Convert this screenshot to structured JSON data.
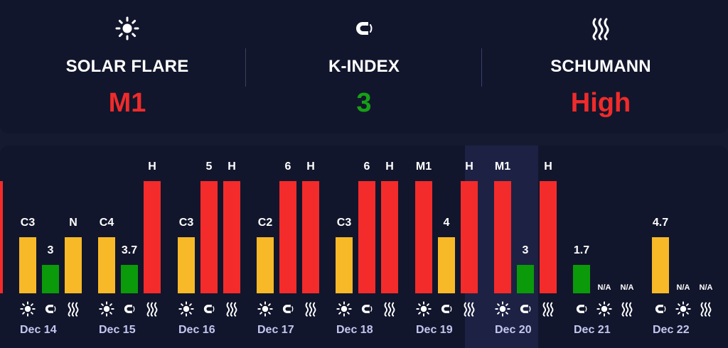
{
  "summary": {
    "solar_flare": {
      "label": "SOLAR FLARE",
      "value": "M1",
      "color": "#f02b2b",
      "icon": "sun-icon"
    },
    "k_index": {
      "label": "K-INDEX",
      "value": "3",
      "color": "#16a016",
      "icon": "magnet-icon"
    },
    "schumann": {
      "label": "SCHUMANN",
      "value": "High",
      "color": "#f02b2b",
      "icon": "wave-icon"
    }
  },
  "colors": {
    "low": "#f7b928",
    "green": "#0a9a0a",
    "high": "#f42b2b",
    "highlight_bg": "#1d2244",
    "date_text": "#c3c7f0"
  },
  "chart_data": {
    "type": "bar",
    "title": "",
    "xlabel": "",
    "ylabel": "",
    "categories": [
      "Dec 14",
      "Dec 15",
      "Dec 16",
      "Dec 17",
      "Dec 18",
      "Dec 19",
      "Dec 20",
      "Dec 21",
      "Dec 22"
    ],
    "selected": "Dec 20",
    "series": [
      {
        "name": "Solar flare",
        "labels": [
          "C3",
          "C4",
          "C3",
          "C2",
          "C3",
          "M1",
          "M1",
          "N/A",
          "N/A"
        ],
        "levels": [
          2,
          2,
          2,
          2,
          2,
          4,
          4,
          null,
          null
        ],
        "colors": [
          "#f7b928",
          "#f7b928",
          "#f7b928",
          "#f7b928",
          "#f7b928",
          "#f42b2b",
          "#f42b2b",
          null,
          null
        ]
      },
      {
        "name": "K-index",
        "labels": [
          "3",
          "3.7",
          "5",
          "6",
          "6",
          "4",
          "3",
          "1.7",
          "4.7"
        ],
        "levels": [
          1,
          1,
          4,
          4,
          4,
          2,
          1,
          1,
          2
        ],
        "colors": [
          "#0a9a0a",
          "#0a9a0a",
          "#f42b2b",
          "#f42b2b",
          "#f42b2b",
          "#f7b928",
          "#0a9a0a",
          "#0a9a0a",
          "#f7b928"
        ]
      },
      {
        "name": "Schumann",
        "labels": [
          "N",
          "H",
          "H",
          "H",
          "H",
          "H",
          "H",
          "N/A",
          "N/A"
        ],
        "levels": [
          2,
          4,
          4,
          4,
          4,
          4,
          4,
          null,
          null
        ],
        "colors": [
          "#f7b928",
          "#f42b2b",
          "#f42b2b",
          "#f42b2b",
          "#f42b2b",
          "#f42b2b",
          "#f42b2b",
          null,
          null
        ]
      }
    ],
    "group_order": [
      [
        "Solar flare",
        "K-index",
        "Schumann"
      ],
      [
        "Solar flare",
        "K-index",
        "Schumann"
      ],
      [
        "Solar flare",
        "K-index",
        "Schumann"
      ],
      [
        "Solar flare",
        "K-index",
        "Schumann"
      ],
      [
        "Solar flare",
        "K-index",
        "Schumann"
      ],
      [
        "Solar flare",
        "K-index",
        "Schumann"
      ],
      [
        "Solar flare",
        "K-index",
        "Schumann"
      ],
      [
        "K-index",
        "Solar flare",
        "Schumann"
      ],
      [
        "K-index",
        "Solar flare",
        "Schumann"
      ]
    ],
    "level_scale": {
      "min": 0,
      "max": 4
    }
  }
}
